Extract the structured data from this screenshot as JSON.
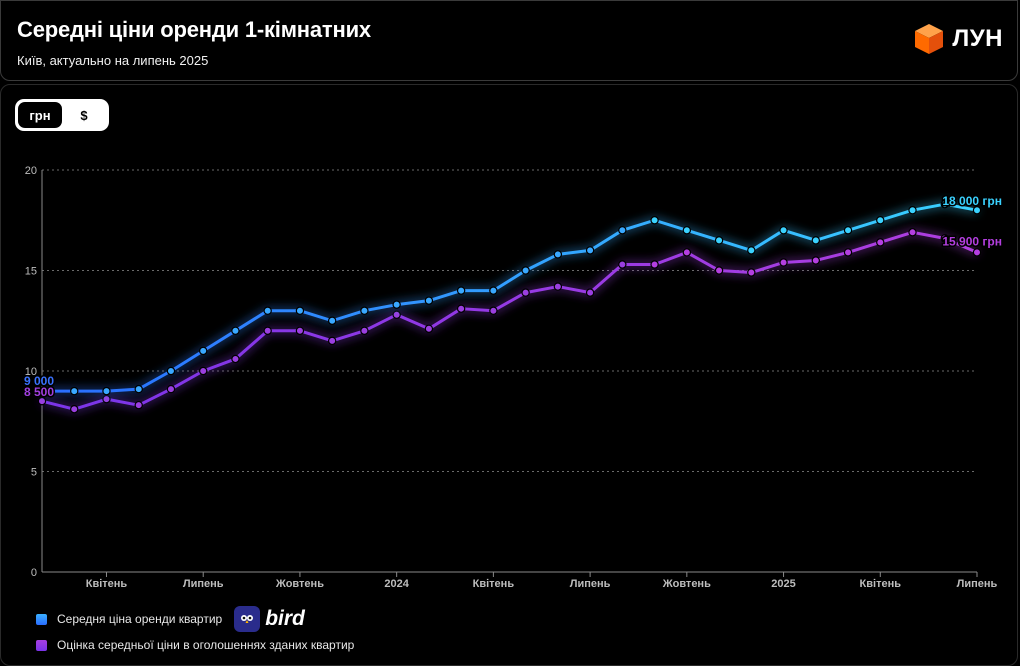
{
  "header": {
    "title": "Середні ціни оренди 1-кімнатних",
    "subtitle": "Київ, актуально на липень 2025",
    "logo_text": "ЛУН",
    "logo_icon": "orange-cube-icon"
  },
  "toggle": {
    "options": [
      "грн",
      "$"
    ],
    "selected": "грн"
  },
  "legend": {
    "items": [
      {
        "label": "Середня ціна оренди квартир",
        "color": "#2f8fff"
      },
      {
        "label": "Оцінка середньої ціни в оголошеннях зданих квартир",
        "color": "#9b3fe0"
      }
    ],
    "partner": "bird",
    "partner_icon": "bird-icon"
  },
  "chart_data": {
    "type": "line",
    "x_tick_labels": [
      "Квітень",
      "Липень",
      "Жовтень",
      "2024",
      "Квітень",
      "Липень",
      "Жовтень",
      "2025",
      "Квітень",
      "Липень"
    ],
    "y_ticks": [
      "0",
      "5",
      "10",
      "15",
      "20"
    ],
    "ylim": [
      0,
      20
    ],
    "y_unit": "тис. грн",
    "grid": true,
    "series": [
      {
        "name": "Середня ціна оренди квартир",
        "color": "#2f8fff",
        "values": [
          9.0,
          9.0,
          9.0,
          9.1,
          10.0,
          11.0,
          12.0,
          13.0,
          13.0,
          12.5,
          13.0,
          13.3,
          13.5,
          14.0,
          14.0,
          15.0,
          15.8,
          16.0,
          17.0,
          17.5,
          17.0,
          16.5,
          16.0,
          17.0,
          16.5,
          17.0,
          17.5,
          18.0,
          18.3,
          18.0
        ],
        "start_label": "9 000",
        "end_label": "18 000 грн"
      },
      {
        "name": "Оцінка середньої ціни в оголошеннях зданих квартир",
        "color": "#9b3fe0",
        "values": [
          8.5,
          8.1,
          8.6,
          8.3,
          9.1,
          10.0,
          10.6,
          12.0,
          12.0,
          11.5,
          12.0,
          12.8,
          12.1,
          13.1,
          13.0,
          13.9,
          14.2,
          13.9,
          15.3,
          15.3,
          15.9,
          15.0,
          14.9,
          15.4,
          15.5,
          15.9,
          16.4,
          16.9,
          16.6,
          15.9
        ],
        "start_label": "8 500",
        "end_label": "15 900 грн"
      }
    ]
  }
}
